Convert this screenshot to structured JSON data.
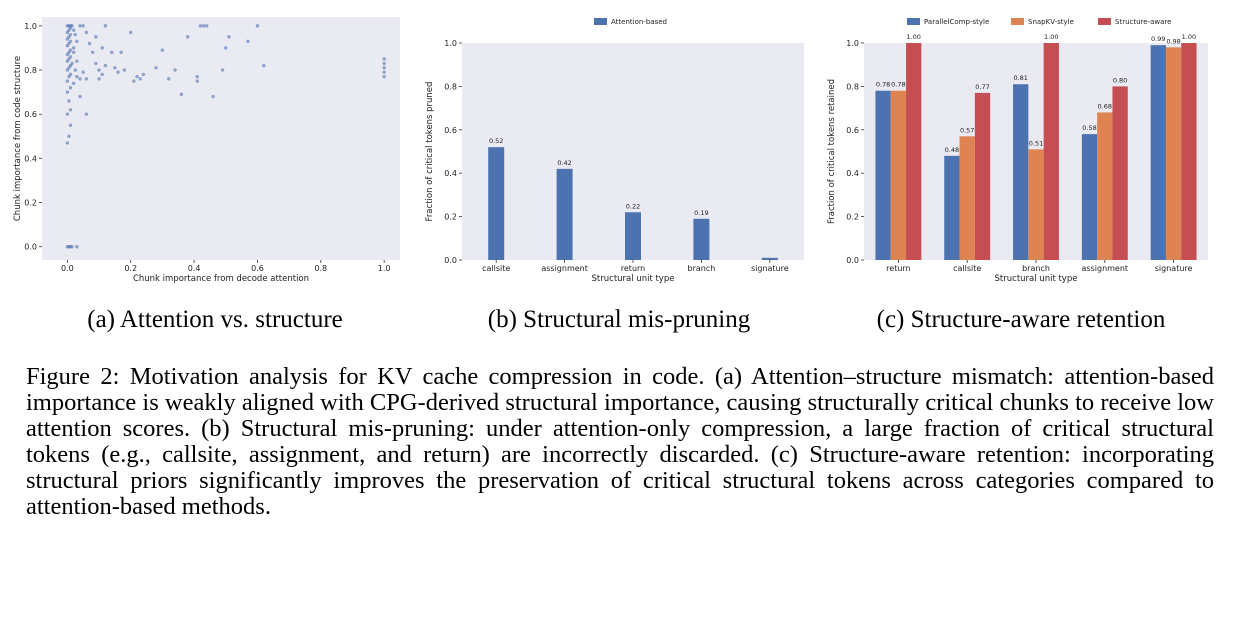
{
  "chart_data": [
    {
      "type": "scatter",
      "xlabel": "Chunk importance from decode attention",
      "ylabel": "Chunk importance from code structure",
      "xlim": [
        -0.08,
        1.05
      ],
      "ylim": [
        -0.06,
        1.04
      ],
      "xticks": [
        "0.0",
        "0.2",
        "0.4",
        "0.6",
        "0.8",
        "1.0"
      ],
      "yticks": [
        "0.0",
        "0.2",
        "0.4",
        "0.6",
        "0.8",
        "1.0"
      ],
      "color": "#4c72b0",
      "points": [
        [
          0.0,
          0.0
        ],
        [
          0.005,
          0.0
        ],
        [
          0.01,
          0.0
        ],
        [
          0.015,
          0.0
        ],
        [
          0.03,
          0.0
        ],
        [
          0.0,
          0.47
        ],
        [
          0.005,
          0.5
        ],
        [
          0.01,
          0.55
        ],
        [
          0.0,
          0.6
        ],
        [
          0.01,
          0.62
        ],
        [
          0.005,
          0.66
        ],
        [
          0.0,
          0.7
        ],
        [
          0.01,
          0.72
        ],
        [
          0.02,
          0.74
        ],
        [
          0.0,
          0.75
        ],
        [
          0.005,
          0.77
        ],
        [
          0.01,
          0.78
        ],
        [
          0.0,
          0.8
        ],
        [
          0.005,
          0.81
        ],
        [
          0.01,
          0.82
        ],
        [
          0.015,
          0.83
        ],
        [
          0.0,
          0.84
        ],
        [
          0.005,
          0.85
        ],
        [
          0.01,
          0.86
        ],
        [
          0.0,
          0.87
        ],
        [
          0.005,
          0.88
        ],
        [
          0.01,
          0.89
        ],
        [
          0.02,
          0.9
        ],
        [
          0.0,
          0.91
        ],
        [
          0.005,
          0.92
        ],
        [
          0.01,
          0.93
        ],
        [
          0.0,
          0.94
        ],
        [
          0.005,
          0.95
        ],
        [
          0.01,
          0.96
        ],
        [
          0.0,
          0.97
        ],
        [
          0.005,
          0.98
        ],
        [
          0.01,
          0.99
        ],
        [
          0.0,
          1.0
        ],
        [
          0.005,
          1.0
        ],
        [
          0.01,
          1.0
        ],
        [
          0.015,
          1.0
        ],
        [
          0.02,
          0.98
        ],
        [
          0.025,
          0.96
        ],
        [
          0.03,
          0.93
        ],
        [
          0.02,
          0.88
        ],
        [
          0.03,
          0.84
        ],
        [
          0.025,
          0.8
        ],
        [
          0.03,
          0.77
        ],
        [
          0.04,
          0.76
        ],
        [
          0.05,
          0.79
        ],
        [
          0.06,
          0.76
        ],
        [
          0.04,
          0.68
        ],
        [
          0.06,
          0.6
        ],
        [
          0.04,
          1.0
        ],
        [
          0.05,
          1.0
        ],
        [
          0.06,
          0.97
        ],
        [
          0.07,
          0.92
        ],
        [
          0.08,
          0.88
        ],
        [
          0.09,
          0.83
        ],
        [
          0.1,
          0.8
        ],
        [
          0.11,
          0.78
        ],
        [
          0.12,
          0.82
        ],
        [
          0.1,
          0.76
        ],
        [
          0.09,
          0.95
        ],
        [
          0.11,
          0.9
        ],
        [
          0.12,
          1.0
        ],
        [
          0.14,
          0.88
        ],
        [
          0.15,
          0.81
        ],
        [
          0.16,
          0.79
        ],
        [
          0.18,
          0.8
        ],
        [
          0.17,
          0.88
        ],
        [
          0.2,
          0.97
        ],
        [
          0.21,
          0.75
        ],
        [
          0.22,
          0.77
        ],
        [
          0.23,
          0.76
        ],
        [
          0.24,
          0.78
        ],
        [
          0.28,
          0.81
        ],
        [
          0.3,
          0.89
        ],
        [
          0.32,
          0.76
        ],
        [
          0.34,
          0.8
        ],
        [
          0.36,
          0.69
        ],
        [
          0.38,
          0.95
        ],
        [
          0.41,
          0.77
        ],
        [
          0.41,
          0.75
        ],
        [
          0.42,
          1.0
        ],
        [
          0.43,
          1.0
        ],
        [
          0.44,
          1.0
        ],
        [
          0.46,
          0.68
        ],
        [
          0.49,
          0.8
        ],
        [
          0.5,
          0.9
        ],
        [
          0.51,
          0.95
        ],
        [
          0.57,
          0.93
        ],
        [
          0.6,
          1.0
        ],
        [
          0.62,
          0.82
        ],
        [
          1.0,
          0.77
        ],
        [
          1.0,
          0.79
        ],
        [
          1.0,
          0.81
        ],
        [
          1.0,
          0.83
        ],
        [
          1.0,
          0.85
        ]
      ]
    },
    {
      "type": "bar",
      "xlabel": "Structural unit type",
      "ylabel": "Fraction of critical tokens pruned",
      "ylim": [
        0,
        1.0
      ],
      "yticks": [
        "0.0",
        "0.2",
        "0.4",
        "0.6",
        "0.8",
        "1.0"
      ],
      "categories": [
        "callsite",
        "assignment",
        "return",
        "branch",
        "signature"
      ],
      "legend_position": "top-center",
      "series": [
        {
          "name": "Attention-based",
          "color": "#4c72b0",
          "values": [
            0.52,
            0.42,
            0.22,
            0.19,
            0.01
          ],
          "labels": [
            "0.52",
            "0.42",
            "0.22",
            "0.19",
            ""
          ]
        }
      ]
    },
    {
      "type": "bar",
      "xlabel": "Structural unit type",
      "ylabel": "Fraction of critical tokens retained",
      "ylim": [
        0,
        1.0
      ],
      "yticks": [
        "0.0",
        "0.2",
        "0.4",
        "0.6",
        "0.8",
        "1.0"
      ],
      "categories": [
        "return",
        "callsite",
        "branch",
        "assignment",
        "signature"
      ],
      "legend_position": "top-center",
      "series": [
        {
          "name": "ParallelComp-style",
          "color": "#4c72b0",
          "values": [
            0.78,
            0.48,
            0.81,
            0.58,
            0.99
          ],
          "labels": [
            "0.78",
            "0.48",
            "0.81",
            "0.58",
            "0.99"
          ]
        },
        {
          "name": "SnapKV-style",
          "color": "#dd8452",
          "values": [
            0.78,
            0.57,
            0.51,
            0.68,
            0.98
          ],
          "labels": [
            "0.78",
            "0.57",
            "0.51",
            "0.68",
            "0.98"
          ]
        },
        {
          "name": "Structure-aware",
          "color": "#c44e52",
          "values": [
            1.0,
            0.77,
            1.0,
            0.8,
            1.0
          ],
          "labels": [
            "1.00",
            "0.77",
            "1.00",
            "0.80",
            "1.00"
          ]
        }
      ]
    }
  ],
  "subcaptions": [
    "(a) Attention vs. structure",
    "(b) Structural mis-pruning",
    "(c) Structure-aware retention"
  ],
  "caption": "Figure 2: Motivation analysis for KV cache compression in code. (a) Attention–structure mismatch: attention-based importance is weakly aligned with CPG-derived structural importance, causing structurally critical chunks to receive low attention scores. (b) Structural mis-pruning: under attention-only compression, a large fraction of critical structural tokens (e.g., callsite, assignment, and return) are incorrectly discarded. (c) Structure-aware retention: incorporating structural priors significantly improves the preservation of critical structural tokens across categories compared to attention-based methods."
}
